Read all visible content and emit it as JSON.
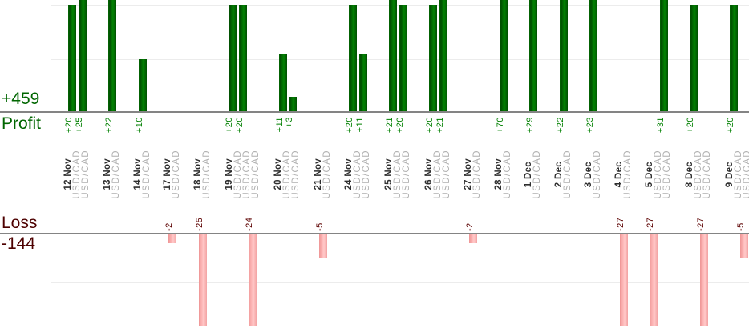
{
  "chart_data": {
    "type": "bar",
    "orientation": "vertical",
    "legend_position": "none",
    "grid": true,
    "profit": {
      "label": "Profit",
      "total": "+459"
    },
    "loss": {
      "label": "Loss",
      "total": "-144"
    },
    "y_gridlines": {
      "profit": [
        10,
        20
      ],
      "loss": [
        -10
      ]
    },
    "colors": {
      "profit_bar": "#006400",
      "loss_bar": "#ffb0b0",
      "profit_text": "#008000",
      "profit_text_big": "#006600",
      "loss_text": "#5c0000",
      "loss_text_big": "#4d0000",
      "axis_line": "#848484",
      "gridline": "#ececec",
      "date_label": "#2e2e2e",
      "instrument_label": "#b0b0b0"
    },
    "groups": [
      {
        "date": "12 Nov",
        "trades": [
          {
            "instrument": "USD/CAD",
            "value": 20,
            "label": "+20"
          },
          {
            "instrument": "USD/CAD",
            "value": 25,
            "label": "+25"
          }
        ]
      },
      {
        "date": "13 Nov",
        "trades": [
          {
            "instrument": "USD/CAD",
            "value": 22,
            "label": "+22"
          }
        ]
      },
      {
        "date": "14 Nov",
        "trades": [
          {
            "instrument": "USD/CAD",
            "value": 10,
            "label": "+10"
          }
        ]
      },
      {
        "date": "17 Nov",
        "trades": [
          {
            "instrument": "USD/CAD",
            "value": -2,
            "label": "-2"
          }
        ]
      },
      {
        "date": "18 Nov",
        "trades": [
          {
            "instrument": "USD/CAD",
            "value": -25,
            "label": "-25"
          }
        ]
      },
      {
        "date": "19 Nov",
        "trades": [
          {
            "instrument": "USD/CAD",
            "value": 20,
            "label": "+20"
          },
          {
            "instrument": "USD/CAD",
            "value": 20,
            "label": "+20"
          },
          {
            "instrument": "USD/CAD",
            "value": -24,
            "label": "-24"
          }
        ]
      },
      {
        "date": "20 Nov",
        "trades": [
          {
            "instrument": "USD/CAD",
            "value": 11,
            "label": "+11"
          },
          {
            "instrument": "USD/CAD",
            "value": 3,
            "label": "+3"
          }
        ]
      },
      {
        "date": "21 Nov",
        "trades": [
          {
            "instrument": "USD/CAD",
            "value": -5,
            "label": "-5"
          }
        ]
      },
      {
        "date": "24 Nov",
        "trades": [
          {
            "instrument": "USD/CAD",
            "value": 20,
            "label": "+20"
          },
          {
            "instrument": "USD/CAD",
            "value": 11,
            "label": "+11"
          }
        ]
      },
      {
        "date": "25 Nov",
        "trades": [
          {
            "instrument": "USD/CAD",
            "value": 21,
            "label": "+21"
          },
          {
            "instrument": "USD/CAD",
            "value": 20,
            "label": "+20"
          }
        ]
      },
      {
        "date": "26 Nov",
        "trades": [
          {
            "instrument": "USD/CAD",
            "value": 20,
            "label": "+20"
          },
          {
            "instrument": "USD/CAD",
            "value": 21,
            "label": "+21"
          }
        ]
      },
      {
        "date": "27 Nov",
        "trades": [
          {
            "instrument": "USD/CAD",
            "value": -2,
            "label": "-2"
          }
        ]
      },
      {
        "date": "28 Nov",
        "trades": [
          {
            "instrument": "USD/CAD",
            "value": 70,
            "label": "+70"
          }
        ]
      },
      {
        "date": "1 Dec",
        "trades": [
          {
            "instrument": "USD/CAD",
            "value": 29,
            "label": "+29"
          }
        ]
      },
      {
        "date": "2 Dec",
        "trades": [
          {
            "instrument": "USD/CAD",
            "value": 22,
            "label": "+22"
          }
        ]
      },
      {
        "date": "3 Dec",
        "trades": [
          {
            "instrument": "USD/CAD",
            "value": 23,
            "label": "+23"
          }
        ]
      },
      {
        "date": "4 Dec",
        "trades": [
          {
            "instrument": "USD/CAD",
            "value": -27,
            "label": "-27"
          }
        ]
      },
      {
        "date": "5 Dec",
        "trades": [
          {
            "instrument": "USD/CAD",
            "value": -27,
            "label": "-27"
          },
          {
            "instrument": "USD/CAD",
            "value": 31,
            "label": "+31"
          }
        ]
      },
      {
        "date": "8 Dec",
        "trades": [
          {
            "instrument": "USD/CAD",
            "value": 20,
            "label": "+20"
          },
          {
            "instrument": "USD/CAD",
            "value": -27,
            "label": "-27"
          }
        ]
      },
      {
        "date": "9 Dec",
        "trades": [
          {
            "instrument": "USD/CAD",
            "value": 20,
            "label": "+20"
          },
          {
            "instrument": "USD/CAD",
            "value": -5,
            "label": "-5"
          }
        ]
      }
    ]
  }
}
